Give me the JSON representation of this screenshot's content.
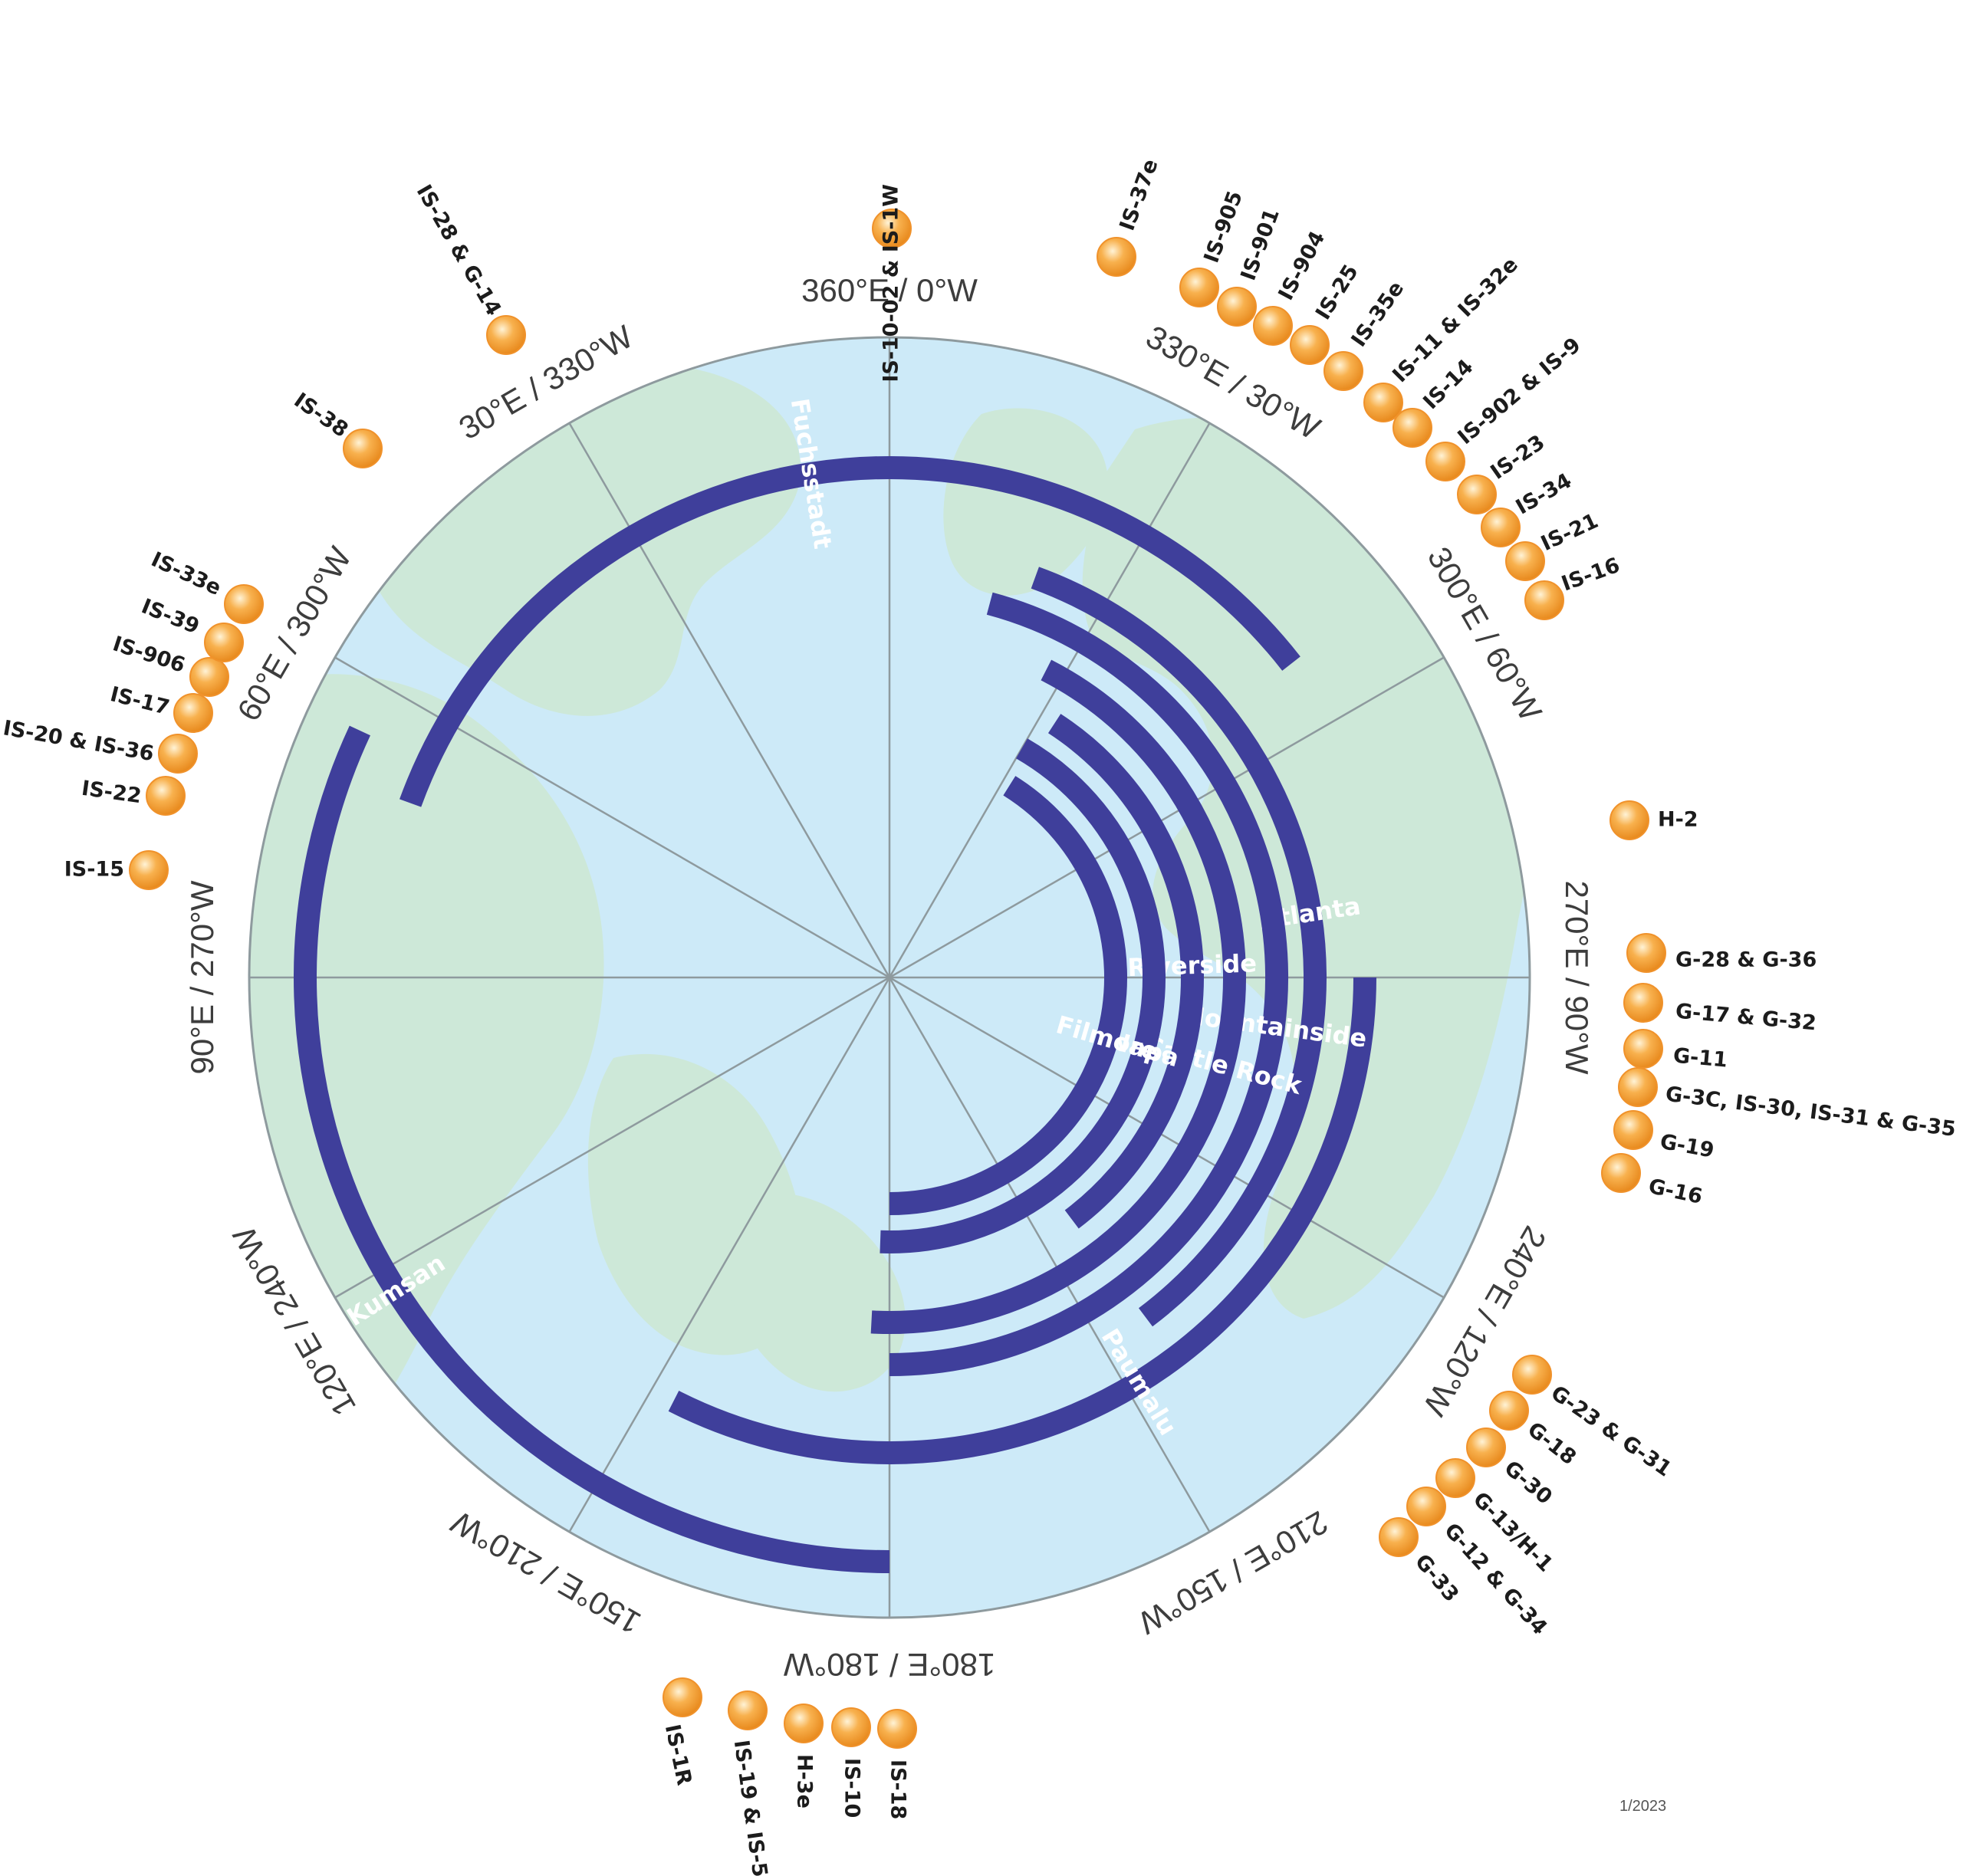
{
  "degree_labels": [
    "360°E / 0°W",
    "330°E / 30°W",
    "300°E / 60°W",
    "270°E / 90°W",
    "240°E / 120°W",
    "210°E / 150°W",
    "180°E / 180°W",
    "150°E / 210°W",
    "120°E / 240°W",
    "90°E / 270°W",
    "60°E / 300°W",
    "30°E / 330°W"
  ],
  "arcs": [
    {
      "name": "Fuchsstadt",
      "from_deg": 290,
      "to_deg": 52
    },
    {
      "name": "Kumsan",
      "from_deg": 180,
      "to_deg": 295
    },
    {
      "name": "Paumalu",
      "from_deg": 90,
      "to_deg": 207
    },
    {
      "name": "Atlanta",
      "from_deg": 20,
      "to_deg": 143
    },
    {
      "name": "Mountainside",
      "from_deg": 15,
      "to_deg": 180
    },
    {
      "name": "Castle Rock",
      "from_deg": 27,
      "to_deg": 183
    },
    {
      "name": "Riverside",
      "from_deg": 33,
      "to_deg": 143
    },
    {
      "name": "Napa",
      "from_deg": 30,
      "to_deg": 182
    },
    {
      "name": "Filmore",
      "from_deg": 32,
      "to_deg": 180
    }
  ],
  "satellites": [
    {
      "label": "IS-10-02 & IS-1W"
    },
    {
      "label": "IS-37e"
    },
    {
      "label": "IS-905"
    },
    {
      "label": "IS-901"
    },
    {
      "label": "IS-904"
    },
    {
      "label": "IS-25"
    },
    {
      "label": "IS-35e"
    },
    {
      "label": "IS-11 & IS-32e"
    },
    {
      "label": "IS-14"
    },
    {
      "label": "IS-902 & IS-9"
    },
    {
      "label": "IS-23"
    },
    {
      "label": "IS-34"
    },
    {
      "label": "IS-21"
    },
    {
      "label": "IS-16"
    },
    {
      "label": "H-2"
    },
    {
      "label": "G-28 & G-36"
    },
    {
      "label": "G-17 & G-32"
    },
    {
      "label": "G-11"
    },
    {
      "label": "G-3C, IS-30, IS-31 & G-35"
    },
    {
      "label": "G-19"
    },
    {
      "label": "G-16"
    },
    {
      "label": "G-23 & G-31"
    },
    {
      "label": "G-18"
    },
    {
      "label": "G-30"
    },
    {
      "label": "G-13/H-1"
    },
    {
      "label": "G-12 & G-34"
    },
    {
      "label": "G-33"
    },
    {
      "label": "IS-18"
    },
    {
      "label": "IS-10"
    },
    {
      "label": "H-3e"
    },
    {
      "label": "IS-19 & IS-5"
    },
    {
      "label": "IS-1R"
    },
    {
      "label": "IS-15"
    },
    {
      "label": "IS-22"
    },
    {
      "label": "IS-20 & IS-36"
    },
    {
      "label": "IS-17"
    },
    {
      "label": "IS-906"
    },
    {
      "label": "IS-39"
    },
    {
      "label": "IS-33e"
    },
    {
      "label": "IS-38"
    },
    {
      "label": "IS-28 & G-14"
    }
  ],
  "date": "1/2023",
  "colors": {
    "ocean": "#cdeaf8",
    "land": "#cde8d8",
    "arc": "#3f3f9b",
    "satellite": "#f5a23c",
    "grid": "#8e9a9e"
  }
}
